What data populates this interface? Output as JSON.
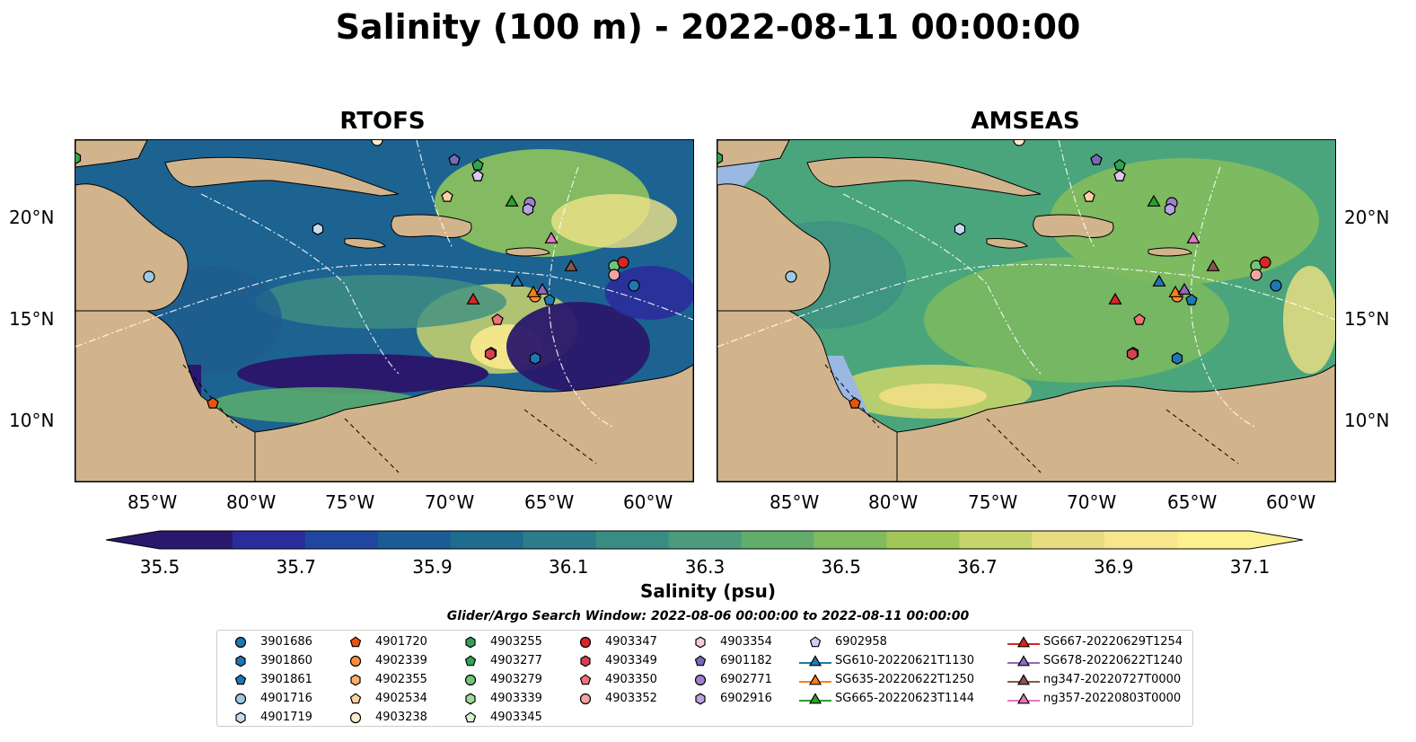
{
  "title": "Salinity (100 m) - 2022-08-11 00:00:00",
  "panels": [
    {
      "title": "RTOFS"
    },
    {
      "title": "AMSEAS"
    }
  ],
  "axes": {
    "lon_ticks": [
      "85°W",
      "80°W",
      "75°W",
      "70°W",
      "65°W",
      "60°W"
    ],
    "lat_ticks": [
      "20°N",
      "15°N",
      "10°N"
    ]
  },
  "colorbar": {
    "ticks": [
      "35.5",
      "35.7",
      "35.9",
      "36.1",
      "36.3",
      "36.5",
      "36.7",
      "36.9",
      "37.1"
    ],
    "label": "Salinity (psu)",
    "colormap": "haline",
    "colors": [
      "#2a186c",
      "#2b2c9b",
      "#1f47a0",
      "#1b5b96",
      "#1e6c8e",
      "#2b7d89",
      "#3a8d84",
      "#4b9c7c",
      "#62ac6c",
      "#80bb5e",
      "#a2c658",
      "#c7d46c",
      "#e7dd80",
      "#f8e68d",
      "#fcf08f"
    ],
    "extend": "both"
  },
  "search_window": "Glider/Argo Search Window: 2022-08-06 00:00:00 to 2022-08-11 00:00:00",
  "colors": {
    "land": "#d2b48c",
    "water_outside": "#9ab8e2",
    "rtofs_base": "#1c6391",
    "amseas_base": "#4aa57c"
  },
  "legend": [
    [
      {
        "label": "3901686",
        "marker": "circle",
        "color": "#1f77b4"
      },
      {
        "label": "3901860",
        "marker": "hexagon",
        "color": "#1f77b4"
      },
      {
        "label": "3901861",
        "marker": "pentagon",
        "color": "#1f77b4"
      },
      {
        "label": "4901716",
        "marker": "circle",
        "color": "#9ecae1"
      },
      {
        "label": "4901719",
        "marker": "hexagon",
        "color": "#c6dbef"
      }
    ],
    [
      {
        "label": "4901720",
        "marker": "pentagon",
        "color": "#e6550d"
      },
      {
        "label": "4902339",
        "marker": "circle",
        "color": "#fd8d3c"
      },
      {
        "label": "4902355",
        "marker": "hexagon",
        "color": "#fdae6b"
      },
      {
        "label": "4902534",
        "marker": "pentagon",
        "color": "#fdd0a2"
      },
      {
        "label": "4903238",
        "marker": "circle",
        "color": "#feead0"
      }
    ],
    [
      {
        "label": "4903255",
        "marker": "hexagon",
        "color": "#31a354"
      },
      {
        "label": "4903277",
        "marker": "pentagon",
        "color": "#31a354"
      },
      {
        "label": "4903279",
        "marker": "circle",
        "color": "#74c476"
      },
      {
        "label": "4903339",
        "marker": "hexagon",
        "color": "#a1d99b"
      },
      {
        "label": "4903345",
        "marker": "pentagon",
        "color": "#d4f5cc"
      }
    ],
    [
      {
        "label": "4903347",
        "marker": "circle",
        "color": "#d62728"
      },
      {
        "label": "4903349",
        "marker": "hexagon",
        "color": "#d6404e"
      },
      {
        "label": "4903350",
        "marker": "pentagon",
        "color": "#f07178"
      },
      {
        "label": "4903352",
        "marker": "circle",
        "color": "#f4a3a5"
      }
    ],
    [
      {
        "label": "4903354",
        "marker": "hexagon",
        "color": "#f9cdd4"
      },
      {
        "label": "6901182",
        "marker": "pentagon",
        "color": "#756bb1"
      },
      {
        "label": "6902771",
        "marker": "circle",
        "color": "#9e7fd0"
      },
      {
        "label": "6902916",
        "marker": "hexagon",
        "color": "#b9a3e0"
      }
    ],
    [
      {
        "label": "6902958",
        "marker": "pentagon",
        "color": "#d9c8f3"
      },
      {
        "label": "SG610-20220621T1130",
        "marker": "triangle",
        "color": "#1f77b4"
      },
      {
        "label": "SG635-20220622T1250",
        "marker": "triangle",
        "color": "#ff7f0e"
      },
      {
        "label": "SG665-20220623T1144",
        "marker": "triangle",
        "color": "#2ca02c"
      }
    ],
    [
      {
        "label": "SG667-20220629T1254",
        "marker": "triangle",
        "color": "#d62728"
      },
      {
        "label": "SG678-20220622T1240",
        "marker": "triangle",
        "color": "#9467bd"
      },
      {
        "label": "ng347-20220727T0000",
        "marker": "triangle",
        "color": "#8c564b"
      },
      {
        "label": "ng357-20220803T0000",
        "marker": "triangle",
        "color": "#e377c2"
      }
    ]
  ]
}
